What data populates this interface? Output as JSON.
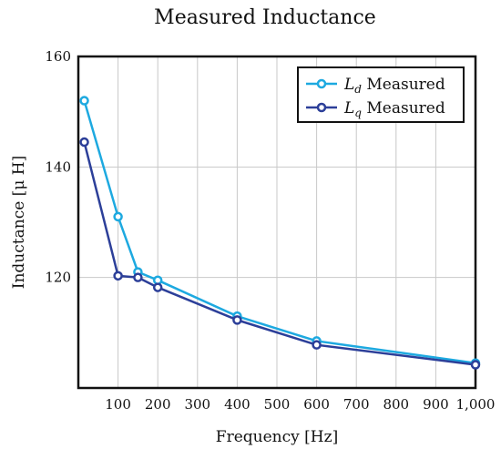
{
  "chart_data": {
    "type": "line",
    "title": "Measured Inductance",
    "xlabel": "Frequency [Hz]",
    "ylabel": "Inductance [μ H]",
    "xlim": [
      0,
      1000
    ],
    "ylim": [
      100,
      160
    ],
    "xticks": [
      100,
      200,
      300,
      400,
      500,
      600,
      700,
      800,
      900,
      1000
    ],
    "xtick_labels": [
      "100",
      "200",
      "300",
      "400",
      "500",
      "600",
      "700",
      "800",
      "900",
      "1,000"
    ],
    "yticks": [
      120,
      140,
      160
    ],
    "ytick_labels": [
      "120",
      "140",
      "160"
    ],
    "grid": true,
    "legend_position": "top-right",
    "series": [
      {
        "name": "L_d Measured",
        "label_main": "L",
        "label_sub": "d",
        "label_rest": " Measured",
        "color": "#1da9e0",
        "x": [
          15,
          100,
          150,
          200,
          400,
          600,
          1000
        ],
        "y": [
          152,
          131,
          121,
          119.5,
          113,
          108.5,
          104.5
        ]
      },
      {
        "name": "L_q Measured",
        "label_main": "L",
        "label_sub": "q",
        "label_rest": " Measured",
        "color": "#2c3f99",
        "x": [
          15,
          100,
          150,
          200,
          400,
          600,
          1000
        ],
        "y": [
          144.5,
          120.3,
          120,
          118.2,
          112.3,
          107.8,
          104.2
        ]
      }
    ]
  }
}
